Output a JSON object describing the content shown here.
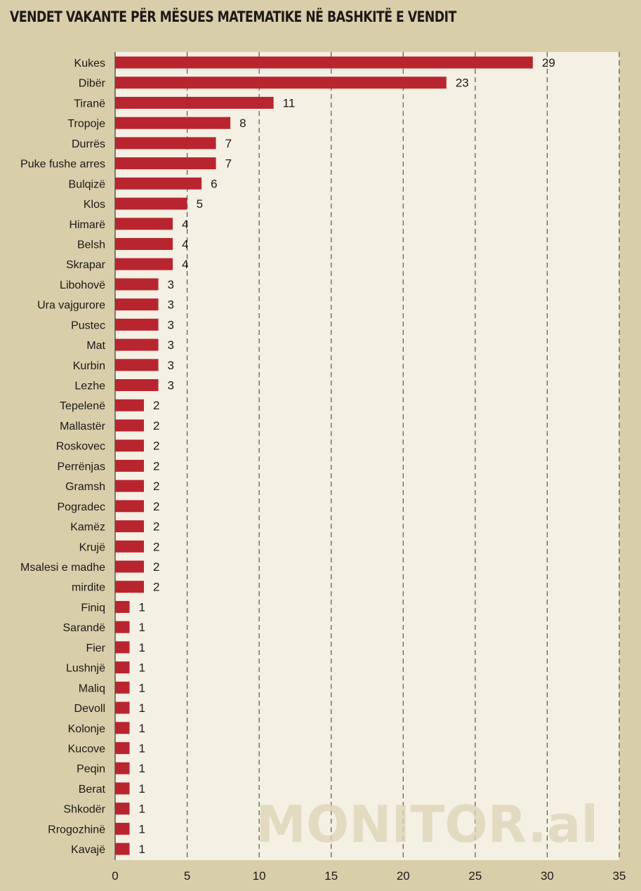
{
  "chart_data": {
    "type": "bar",
    "orientation": "horizontal",
    "title": "VENDET VAKANTE PËR MËSUES MATEMATIKE NË BASHKITË E VENDIT",
    "xlabel": "",
    "ylabel": "",
    "xlim": [
      0,
      35
    ],
    "xticks": [
      0,
      5,
      10,
      15,
      20,
      25,
      30,
      35
    ],
    "grid": "vertical-dashed",
    "watermark": "MONITOR.al",
    "categories": [
      "Kukes",
      "Dibër",
      "Tiranë",
      "Tropoje",
      "Durrës",
      "Puke fushe arres",
      "Bulqizë",
      "Klos",
      "Himarë",
      "Belsh",
      "Skrapar",
      "Libohovë",
      "Ura vajgurore",
      "Pustec",
      "Mat",
      "Kurbin",
      "Lezhe",
      "Tepelenë",
      "Mallastër",
      "Roskovec",
      "Perrënjas",
      "Gramsh",
      "Pogradec",
      "Kamëz",
      "Krujë",
      "Msalesi e madhe",
      "mirdite",
      "Finiq",
      "Sarandë",
      "Fier",
      "Lushnjë",
      "Maliq",
      "Devoll",
      "Kolonje",
      "Kucove",
      "Peqin",
      "Berat",
      "Shkodër",
      "Rrogozhinë",
      "Kavajë"
    ],
    "values": [
      29,
      23,
      11,
      8,
      7,
      7,
      6,
      5,
      4,
      4,
      4,
      3,
      3,
      3,
      3,
      3,
      3,
      2,
      2,
      2,
      2,
      2,
      2,
      2,
      2,
      2,
      2,
      1,
      1,
      1,
      1,
      1,
      1,
      1,
      1,
      1,
      1,
      1,
      1,
      1
    ],
    "colors": {
      "bar": "#b9252f",
      "plot_background": "#f4f0e3",
      "page_background": "#d8ceaa",
      "grid": "#5a5650"
    }
  }
}
